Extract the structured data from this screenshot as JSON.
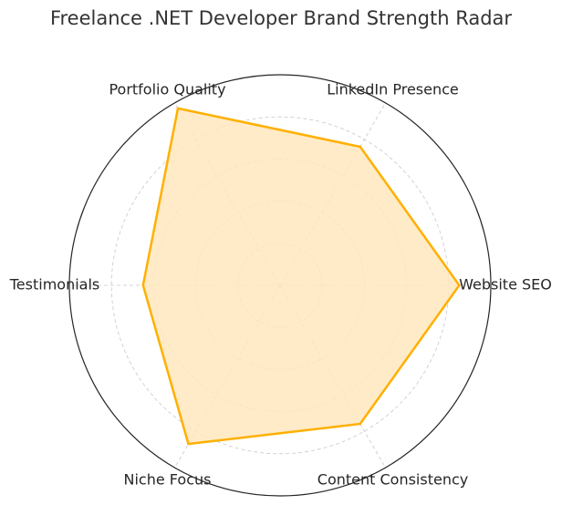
{
  "chart_data": {
    "type": "radar",
    "title": "Freelance .NET Developer Brand Strength Radar",
    "categories": [
      "Website SEO",
      "LinkedIn Presence",
      "Portfolio Quality",
      "Testimonials",
      "Niche Focus",
      "Content Consistency"
    ],
    "values": [
      8.5,
      7.6,
      9.7,
      6.5,
      8.7,
      7.6
    ],
    "color": "#ffb000",
    "fill_color": "#ffe7bd",
    "ylim": [
      0,
      10
    ],
    "yticks": [
      2,
      4,
      6,
      8
    ],
    "grid": true
  }
}
